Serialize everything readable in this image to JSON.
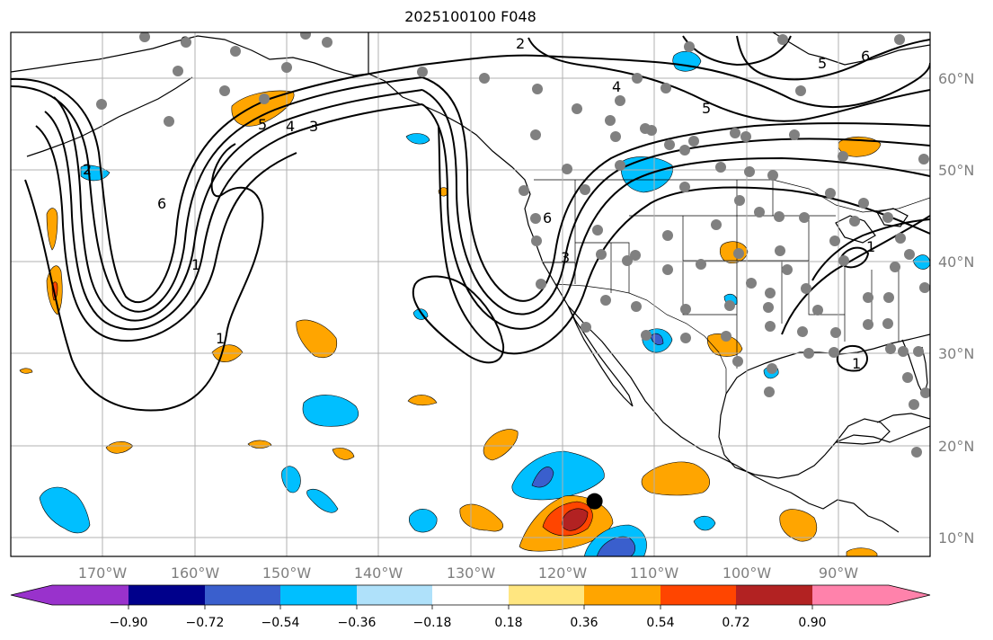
{
  "title": "2025100100 F048",
  "map": {
    "projection": "PlateCarree",
    "lon_range": [
      -180,
      -80
    ],
    "lat_range": [
      7,
      64
    ],
    "gridlines": true,
    "lon_ticks": [
      {
        "lon": -170,
        "label": "170°W"
      },
      {
        "lon": -160,
        "label": "160°W"
      },
      {
        "lon": -150,
        "label": "150°W"
      },
      {
        "lon": -140,
        "label": "140°W"
      },
      {
        "lon": -130,
        "label": "130°W"
      },
      {
        "lon": -120,
        "label": "120°W"
      },
      {
        "lon": -110,
        "label": "110°W"
      },
      {
        "lon": -100,
        "label": "100°W"
      },
      {
        "lon": -90,
        "label": "90°W"
      }
    ],
    "lat_ticks": [
      {
        "lat": 10,
        "label": "10°N"
      },
      {
        "lat": 20,
        "label": "20°N"
      },
      {
        "lat": 30,
        "label": "30°N"
      },
      {
        "lat": 40,
        "label": "40°N"
      },
      {
        "lat": 50,
        "label": "50°N"
      },
      {
        "lat": 60,
        "label": "60°N"
      }
    ],
    "contour_labels": [
      "6",
      "1",
      "2",
      "3",
      "4",
      "5"
    ],
    "station_color": "#808080",
    "highlight_point": {
      "lon": -116.5,
      "lat": 13.0,
      "color": "#000000"
    }
  },
  "colorbar": {
    "colors": [
      "#9932cc",
      "#00008b",
      "#3a5fcd",
      "#00bfff",
      "#afe1fa",
      "#ffffff",
      "#ffe680",
      "#ffa500",
      "#ff4500",
      "#b22222",
      "#ff82ab"
    ],
    "tick_labels": [
      "−0.90",
      "−0.72",
      "−0.54",
      "−0.36",
      "−0.18",
      "0.18",
      "0.36",
      "0.54",
      "0.72",
      "0.90"
    ]
  }
}
